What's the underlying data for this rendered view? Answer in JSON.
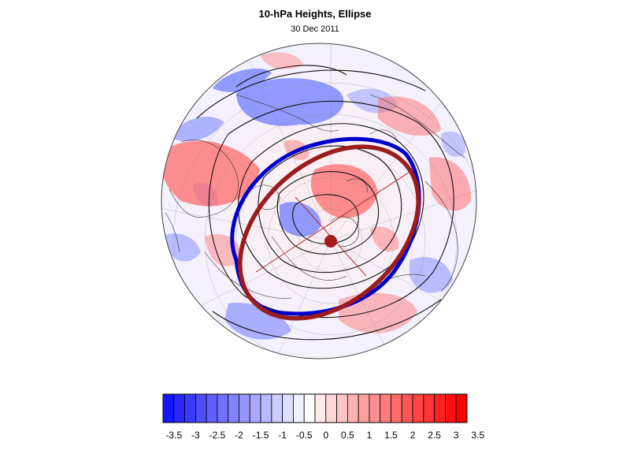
{
  "title": "10-hPa Heights, Ellipse",
  "subtitle": "30 Dec 2011",
  "colorbar": {
    "labels": [
      "-3.5",
      "-3",
      "-2.5",
      "-2",
      "-1.5",
      "-1",
      "-0.5",
      "0",
      "0.5",
      "1",
      "1.5",
      "2",
      "2.5",
      "3",
      "3.5"
    ],
    "low_color": "#0000ff",
    "mid_color": "#ffffff",
    "high_color": "#ff0000",
    "steps": 28
  },
  "map": {
    "projection": "polar-stereographic",
    "anomaly_colors": {
      "negative": "#4a5cff",
      "positive": "#ff4a4a"
    },
    "ellipse_colors": {
      "fitted": "#9b1c1c",
      "contour": "#0000cc"
    },
    "center_marker_color": "#a11c1c"
  }
}
